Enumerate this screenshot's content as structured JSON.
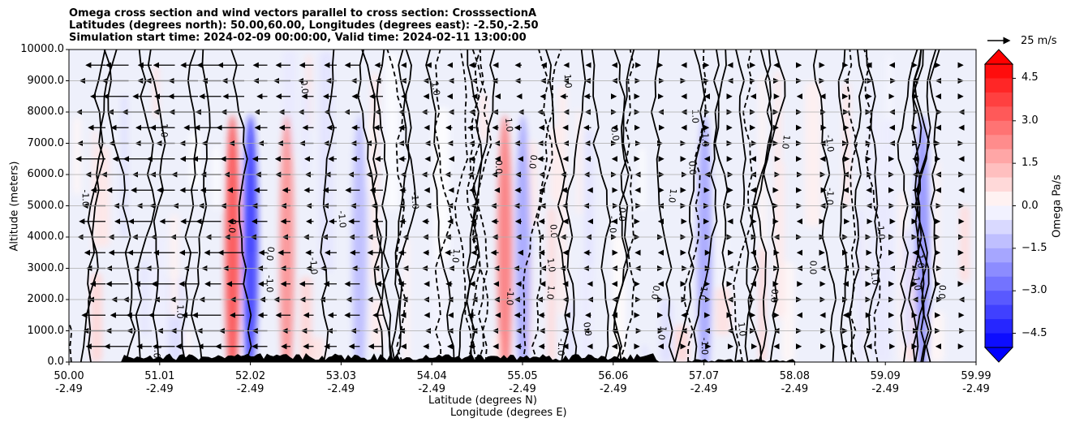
{
  "chart_data": {
    "type": "heatmap",
    "title_lines": [
      "Omega cross section and wind vectors parallel to cross section: CrosssectionA",
      "Latitudes (degrees north): 50.00,60.00, Longitudes (degrees east): -2.50,-2.50",
      "Simulation start time: 2024-02-09 00:00:00, Valid time: 2024-02-11 13:00:00"
    ],
    "ylabel": "Altitude (meters)",
    "xlabel_lat": "Latitude (degrees N)",
    "xlabel_lon": "Longitude (degrees E)",
    "ylim": [
      0,
      10000
    ],
    "yticks": [
      "0.0",
      "1000.0",
      "2000.0",
      "3000.0",
      "4000.0",
      "5000.0",
      "6000.0",
      "7000.0",
      "8000.0",
      "9000.0",
      "10000.0"
    ],
    "xticks": [
      {
        "lat": "50.00",
        "lon": "-2.49"
      },
      {
        "lat": "51.01",
        "lon": "-2.49"
      },
      {
        "lat": "52.02",
        "lon": "-2.49"
      },
      {
        "lat": "53.03",
        "lon": "-2.49"
      },
      {
        "lat": "54.04",
        "lon": "-2.49"
      },
      {
        "lat": "55.05",
        "lon": "-2.49"
      },
      {
        "lat": "56.06",
        "lon": "-2.49"
      },
      {
        "lat": "57.07",
        "lon": "-2.49"
      },
      {
        "lat": "58.08",
        "lon": "-2.49"
      },
      {
        "lat": "59.09",
        "lon": "-2.49"
      },
      {
        "lat": "59.99",
        "lon": "-2.49"
      }
    ],
    "colorbar": {
      "label": "Omega Pa/s",
      "range": [
        -5,
        5
      ],
      "ticks": [
        "4.5",
        "3.0",
        "1.5",
        "0.0",
        "−1.5",
        "−3.0",
        "−4.5"
      ],
      "tick_values": [
        4.5,
        3.0,
        1.5,
        0.0,
        -1.5,
        -3.0,
        -4.5
      ]
    },
    "contour_labels": [
      "0.0",
      "1.0",
      "-1.0"
    ],
    "wind_key": {
      "label": "25 m/s",
      "value": 25
    },
    "features": [
      {
        "lat": 51.8,
        "omega_peak": 4.0,
        "sign": "positive"
      },
      {
        "lat": 52.0,
        "omega_peak": -4.5,
        "sign": "negative"
      },
      {
        "lat": 52.4,
        "omega_peak": 2.5,
        "sign": "positive"
      },
      {
        "lat": 53.2,
        "omega_peak": -1.5,
        "sign": "negative"
      },
      {
        "lat": 54.8,
        "omega_peak": 3.0,
        "sign": "positive"
      },
      {
        "lat": 55.0,
        "omega_peak": -2.0,
        "sign": "negative"
      },
      {
        "lat": 57.0,
        "omega_peak": -2.0,
        "sign": "negative"
      },
      {
        "lat": 59.4,
        "omega_peak": -2.5,
        "sign": "negative"
      }
    ]
  }
}
